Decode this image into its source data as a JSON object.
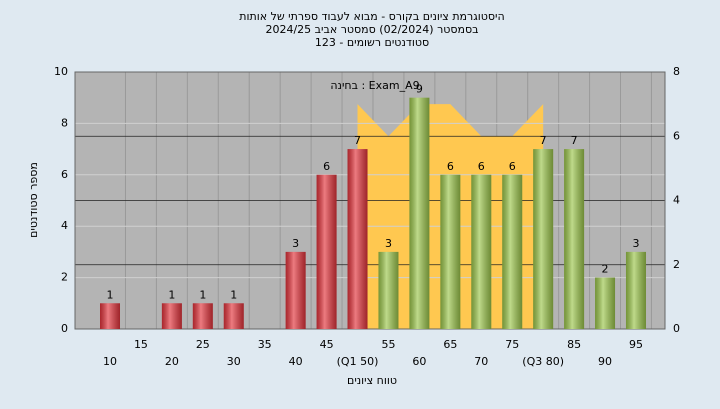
{
  "chart_data": {
    "type": "bar",
    "title": "היסטוגרמת ציונים בקורס - מבוא לעבוד ספרתי של אותות",
    "subtitle": "בסמסטר  (02/2024)  סמסטר אביב 2024/25",
    "subtitle2": "סטודנטים רשומים - 123",
    "annotation": "בחינה : Exam_A9",
    "xlabel": "טווח ציונים",
    "ylabel": "מספר סטודנטים",
    "categories": [
      "10",
      "15",
      "20",
      "25",
      "30",
      "35",
      "40",
      "45",
      "(Q1 50)",
      "55",
      "60",
      "65",
      "70",
      "75",
      "(Q3 80)",
      "85",
      "90",
      "95"
    ],
    "values": [
      1,
      null,
      1,
      1,
      1,
      null,
      3,
      6,
      7,
      3,
      9,
      6,
      6,
      6,
      7,
      7,
      2,
      3
    ],
    "colors": [
      "#e3343c",
      "#e3343c",
      "#e3343c",
      "#e3343c",
      "#e3343c",
      "#e3343c",
      "#e3343c",
      "#e3343c",
      "#e3343c",
      "#9cc64c",
      "#9cc64c",
      "#9cc64c",
      "#9cc64c",
      "#9cc64c",
      "#9cc64c",
      "#9cc64c",
      "#9cc64c",
      "#9cc64c"
    ],
    "area": {
      "color": "#ffc850",
      "axis": "y2",
      "values": [
        null,
        null,
        null,
        null,
        null,
        null,
        null,
        null,
        7,
        6,
        7,
        7,
        6,
        6,
        7,
        null,
        null,
        null
      ]
    },
    "ylim": [
      0,
      10
    ],
    "yticks": [
      0,
      2,
      4,
      6,
      8,
      10
    ],
    "y2lim": [
      0,
      8
    ],
    "y2ticks": [
      0,
      2,
      4,
      6,
      8
    ],
    "grid": true
  }
}
